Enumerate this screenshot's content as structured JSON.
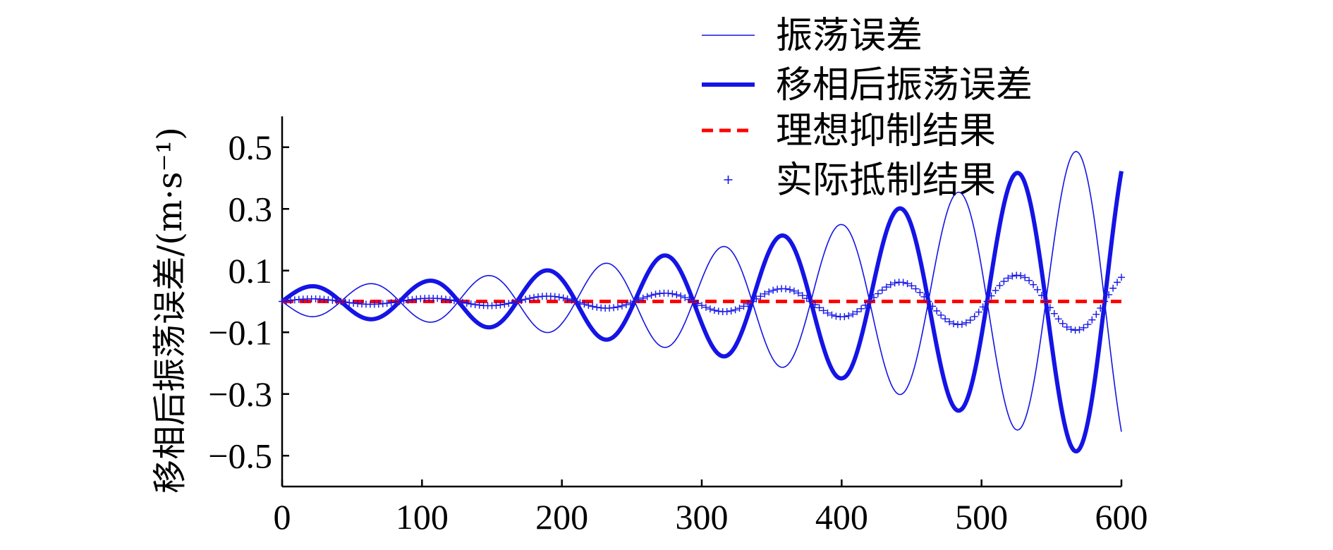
{
  "chart_data": {
    "type": "line",
    "title": "",
    "xlabel": "",
    "ylabel": "移相后振荡误差/(m·s⁻¹)",
    "xlim": [
      0,
      600
    ],
    "ylim": [
      -0.6,
      0.6
    ],
    "xticks": [
      "0",
      "100",
      "200",
      "300",
      "400",
      "500",
      "600"
    ],
    "yticks": [
      "0.5",
      "0.3",
      "0.1",
      "−0.1",
      "−0.3",
      "−0.5"
    ],
    "ytick_values": [
      0.5,
      0.3,
      0.1,
      -0.1,
      -0.3,
      -0.5
    ],
    "xtick_values": [
      0,
      100,
      200,
      300,
      400,
      500,
      600
    ],
    "grid": false,
    "legend_position": "top-right",
    "series": [
      {
        "name": "振荡误差",
        "style": "thin-solid",
        "color": "#1414e6",
        "period": 84,
        "sign": -1,
        "x": [
          0,
          100,
          200,
          300,
          400,
          500,
          600
        ],
        "amplitude": [
          0.045,
          0.065,
          0.105,
          0.165,
          0.25,
          0.375,
          0.54
        ]
      },
      {
        "name": "移相后振荡误差",
        "style": "thick-solid",
        "color": "#1414e6",
        "period": 84,
        "sign": 1,
        "x": [
          0,
          100,
          200,
          300,
          400,
          500,
          600
        ],
        "amplitude": [
          0.045,
          0.065,
          0.105,
          0.165,
          0.25,
          0.375,
          0.54
        ]
      },
      {
        "name": "理想抑制结果",
        "style": "dashed",
        "color": "#ff0000",
        "x": [
          0,
          600
        ],
        "y": [
          0.0,
          0.0
        ]
      },
      {
        "name": "实际抵制结果",
        "style": "plus-markers",
        "color": "#1414e6",
        "period": 84,
        "sign": 1,
        "x": [
          0,
          100,
          200,
          300,
          400,
          500,
          600
        ],
        "amplitude": [
          0.008,
          0.01,
          0.018,
          0.03,
          0.05,
          0.08,
          0.1
        ]
      }
    ]
  }
}
